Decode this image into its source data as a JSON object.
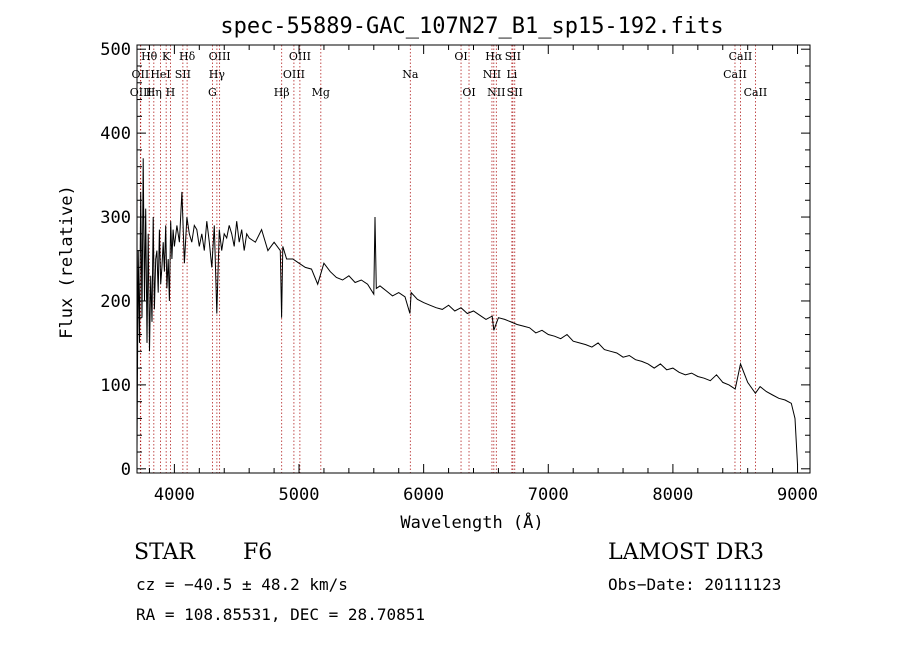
{
  "chart_data": {
    "type": "line",
    "title": "spec-55889-GAC_107N27_B1_sp15-192.fits",
    "xlabel": "Wavelength (Å)",
    "ylabel": "Flux (relative)",
    "xlim": [
      3700,
      9100
    ],
    "ylim": [
      -5,
      505
    ],
    "xticks": [
      4000,
      5000,
      6000,
      7000,
      8000,
      9000
    ],
    "yticks": [
      0,
      100,
      200,
      300,
      400,
      500
    ],
    "series": [
      {
        "name": "flux",
        "x": [
          3700,
          3710,
          3720,
          3730,
          3740,
          3750,
          3760,
          3770,
          3780,
          3790,
          3800,
          3810,
          3820,
          3830,
          3840,
          3850,
          3860,
          3870,
          3880,
          3890,
          3900,
          3910,
          3920,
          3930,
          3940,
          3950,
          3960,
          3970,
          3980,
          3990,
          4000,
          4020,
          4040,
          4060,
          4080,
          4100,
          4120,
          4140,
          4160,
          4180,
          4200,
          4220,
          4240,
          4260,
          4280,
          4300,
          4320,
          4340,
          4360,
          4380,
          4400,
          4420,
          4440,
          4460,
          4480,
          4500,
          4520,
          4540,
          4560,
          4580,
          4600,
          4650,
          4700,
          4750,
          4800,
          4850,
          4860,
          4870,
          4900,
          4950,
          5000,
          5050,
          5100,
          5150,
          5200,
          5250,
          5300,
          5350,
          5400,
          5450,
          5500,
          5550,
          5600,
          5610,
          5620,
          5650,
          5700,
          5750,
          5800,
          5850,
          5890,
          5900,
          5950,
          6000,
          6050,
          6100,
          6150,
          6200,
          6250,
          6300,
          6350,
          6400,
          6450,
          6500,
          6550,
          6563,
          6600,
          6650,
          6700,
          6750,
          6800,
          6850,
          6900,
          6950,
          7000,
          7050,
          7100,
          7150,
          7200,
          7250,
          7300,
          7350,
          7400,
          7450,
          7500,
          7550,
          7600,
          7650,
          7700,
          7750,
          7800,
          7850,
          7900,
          7950,
          8000,
          8050,
          8100,
          8150,
          8200,
          8250,
          8300,
          8350,
          8400,
          8450,
          8500,
          8542,
          8600,
          8662,
          8700,
          8750,
          8800,
          8850,
          8900,
          8950,
          8980,
          9000
        ],
        "values": [
          20,
          260,
          150,
          330,
          180,
          370,
          200,
          310,
          150,
          280,
          140,
          230,
          175,
          300,
          190,
          250,
          260,
          210,
          285,
          220,
          240,
          270,
          235,
          290,
          215,
          250,
          200,
          295,
          250,
          285,
          265,
          290,
          270,
          330,
          245,
          300,
          280,
          270,
          290,
          285,
          265,
          280,
          260,
          295,
          270,
          240,
          290,
          185,
          285,
          260,
          280,
          275,
          290,
          280,
          265,
          295,
          270,
          285,
          260,
          280,
          275,
          270,
          285,
          260,
          270,
          260,
          180,
          265,
          250,
          250,
          245,
          240,
          238,
          220,
          245,
          235,
          228,
          225,
          230,
          222,
          225,
          220,
          208,
          300,
          215,
          218,
          212,
          206,
          210,
          205,
          185,
          210,
          202,
          198,
          195,
          192,
          190,
          195,
          188,
          192,
          185,
          188,
          183,
          178,
          182,
          165,
          180,
          178,
          175,
          172,
          170,
          168,
          162,
          165,
          160,
          158,
          155,
          160,
          152,
          150,
          148,
          145,
          150,
          142,
          140,
          138,
          133,
          135,
          130,
          128,
          125,
          120,
          125,
          118,
          120,
          115,
          112,
          114,
          110,
          108,
          105,
          112,
          103,
          100,
          95,
          125,
          103,
          90,
          98,
          92,
          88,
          84,
          82,
          78,
          60,
          5
        ]
      }
    ],
    "spectral_lines": [
      {
        "label": "Hθ",
        "wavelength": 3798,
        "row": 1
      },
      {
        "label": "OII",
        "wavelength": 3727,
        "row": 2
      },
      {
        "label": "OIII",
        "wavelength": 3730,
        "row": 3
      },
      {
        "label": "Hη",
        "wavelength": 3835,
        "row": 3
      },
      {
        "label": "HeI",
        "wavelength": 3889,
        "row": 2
      },
      {
        "label": "K",
        "wavelength": 3934,
        "row": 1
      },
      {
        "label": "H",
        "wavelength": 3968,
        "row": 3
      },
      {
        "label": "SII",
        "wavelength": 4068,
        "row": 2
      },
      {
        "label": "Hδ",
        "wavelength": 4102,
        "row": 1
      },
      {
        "label": "OIII",
        "wavelength": 4363,
        "row": 1
      },
      {
        "label": "Hγ",
        "wavelength": 4341,
        "row": 2
      },
      {
        "label": "G",
        "wavelength": 4305,
        "row": 3
      },
      {
        "label": "Hβ",
        "wavelength": 4861,
        "row": 3
      },
      {
        "label": "OIII",
        "wavelength": 4959,
        "row": 2
      },
      {
        "label": "OIII",
        "wavelength": 5007,
        "row": 1
      },
      {
        "label": "Mg",
        "wavelength": 5175,
        "row": 3
      },
      {
        "label": "Na",
        "wavelength": 5893,
        "row": 2
      },
      {
        "label": "OI",
        "wavelength": 6300,
        "row": 1
      },
      {
        "label": "OI",
        "wavelength": 6364,
        "row": 3
      },
      {
        "label": "NII",
        "wavelength": 6548,
        "row": 2
      },
      {
        "label": "Hα",
        "wavelength": 6563,
        "row": 1
      },
      {
        "label": "NII",
        "wavelength": 6583,
        "row": 3
      },
      {
        "label": "Li",
        "wavelength": 6708,
        "row": 2
      },
      {
        "label": "SII",
        "wavelength": 6716,
        "row": 1
      },
      {
        "label": "SII",
        "wavelength": 6731,
        "row": 3
      },
      {
        "label": "CaII",
        "wavelength": 8498,
        "row": 2
      },
      {
        "label": "CaII",
        "wavelength": 8542,
        "row": 1
      },
      {
        "label": "CaII",
        "wavelength": 8662,
        "row": 3
      }
    ]
  },
  "info": {
    "object_class": "STAR",
    "subclass": "F6",
    "survey": "LAMOST DR3",
    "cz": "cz = −40.5 ± 48.2 km/s",
    "obs_date": "Obs−Date: 20111123",
    "coords": "RA = 108.85531, DEC =  28.70851"
  },
  "colors": {
    "spectrum": "#000000",
    "line_markers": "#b22222",
    "background": "#ffffff"
  }
}
